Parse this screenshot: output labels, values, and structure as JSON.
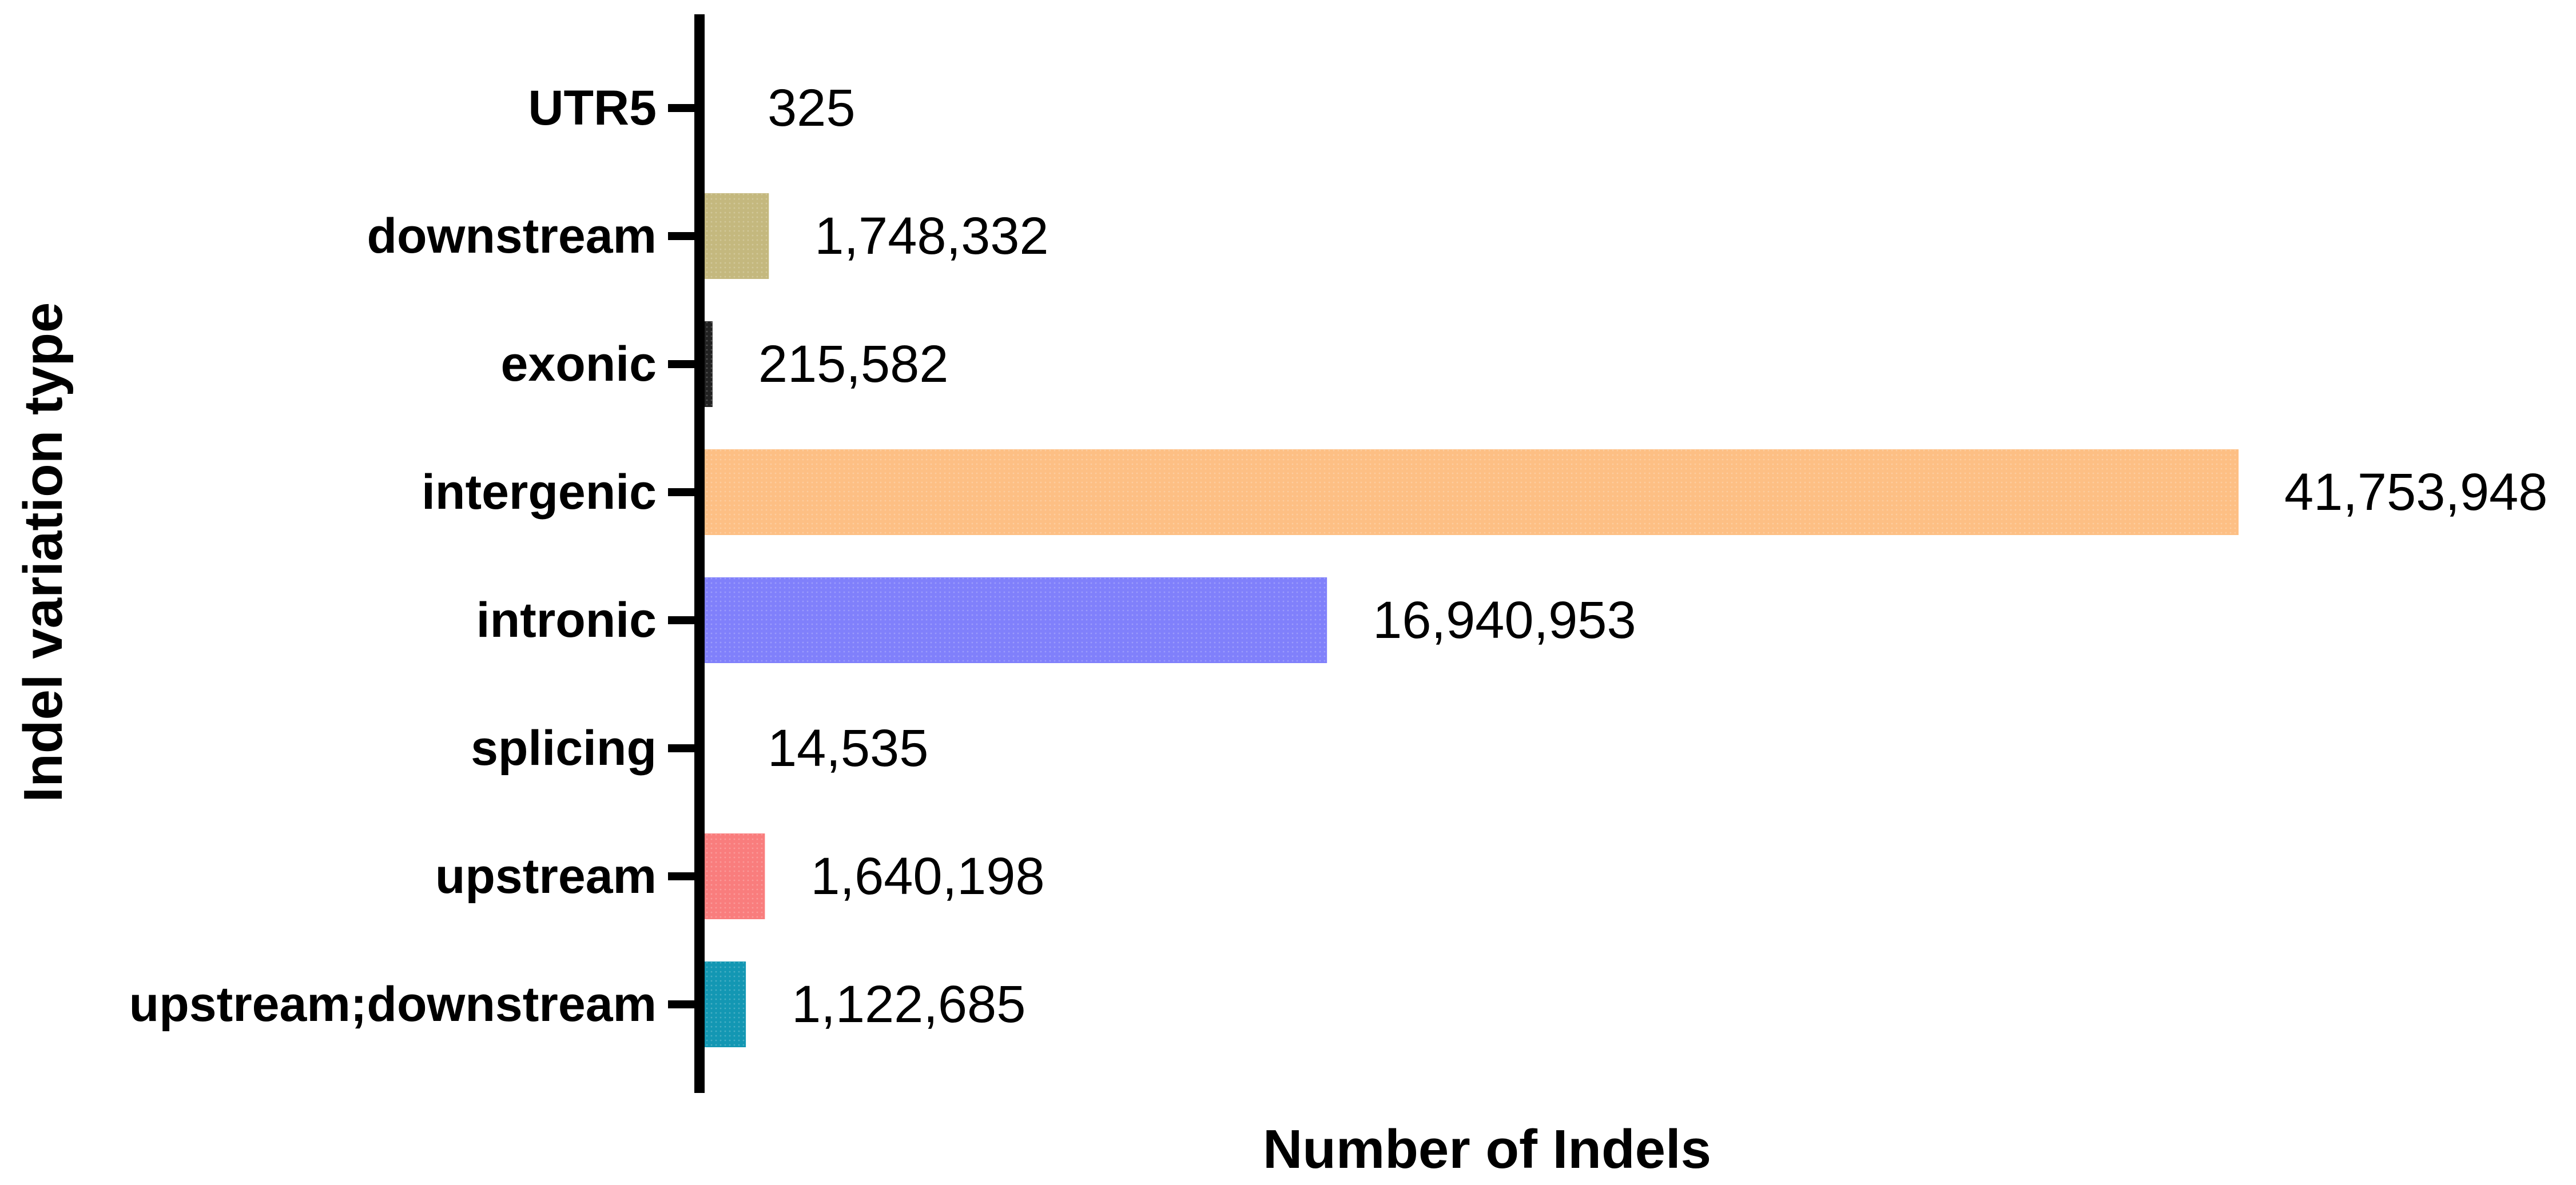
{
  "chart_data": {
    "type": "bar",
    "orientation": "horizontal",
    "title": "",
    "xlabel": "Number of Indels",
    "ylabel": "Indel variation type",
    "categories": [
      "UTR5",
      "downstream",
      "exonic",
      "intergenic",
      "intronic",
      "splicing",
      "upstream",
      "upstream;downstream"
    ],
    "values": [
      325,
      1748332,
      215582,
      41753948,
      16940953,
      14535,
      1640198,
      1122685
    ],
    "value_labels": [
      "325",
      "1,748,332",
      "215,582",
      "41,753,948",
      "16,940,953",
      "14,535",
      "1,640,198",
      "1,122,685"
    ],
    "colors": [
      "#d9d9d9",
      "#c4b87e",
      "#222222",
      "#fdbf84",
      "#8080fb",
      "#c0c0c0",
      "#f97d7d",
      "#1397b3"
    ],
    "xlim": [
      0,
      41753948
    ],
    "grid": false,
    "legend": "none"
  }
}
